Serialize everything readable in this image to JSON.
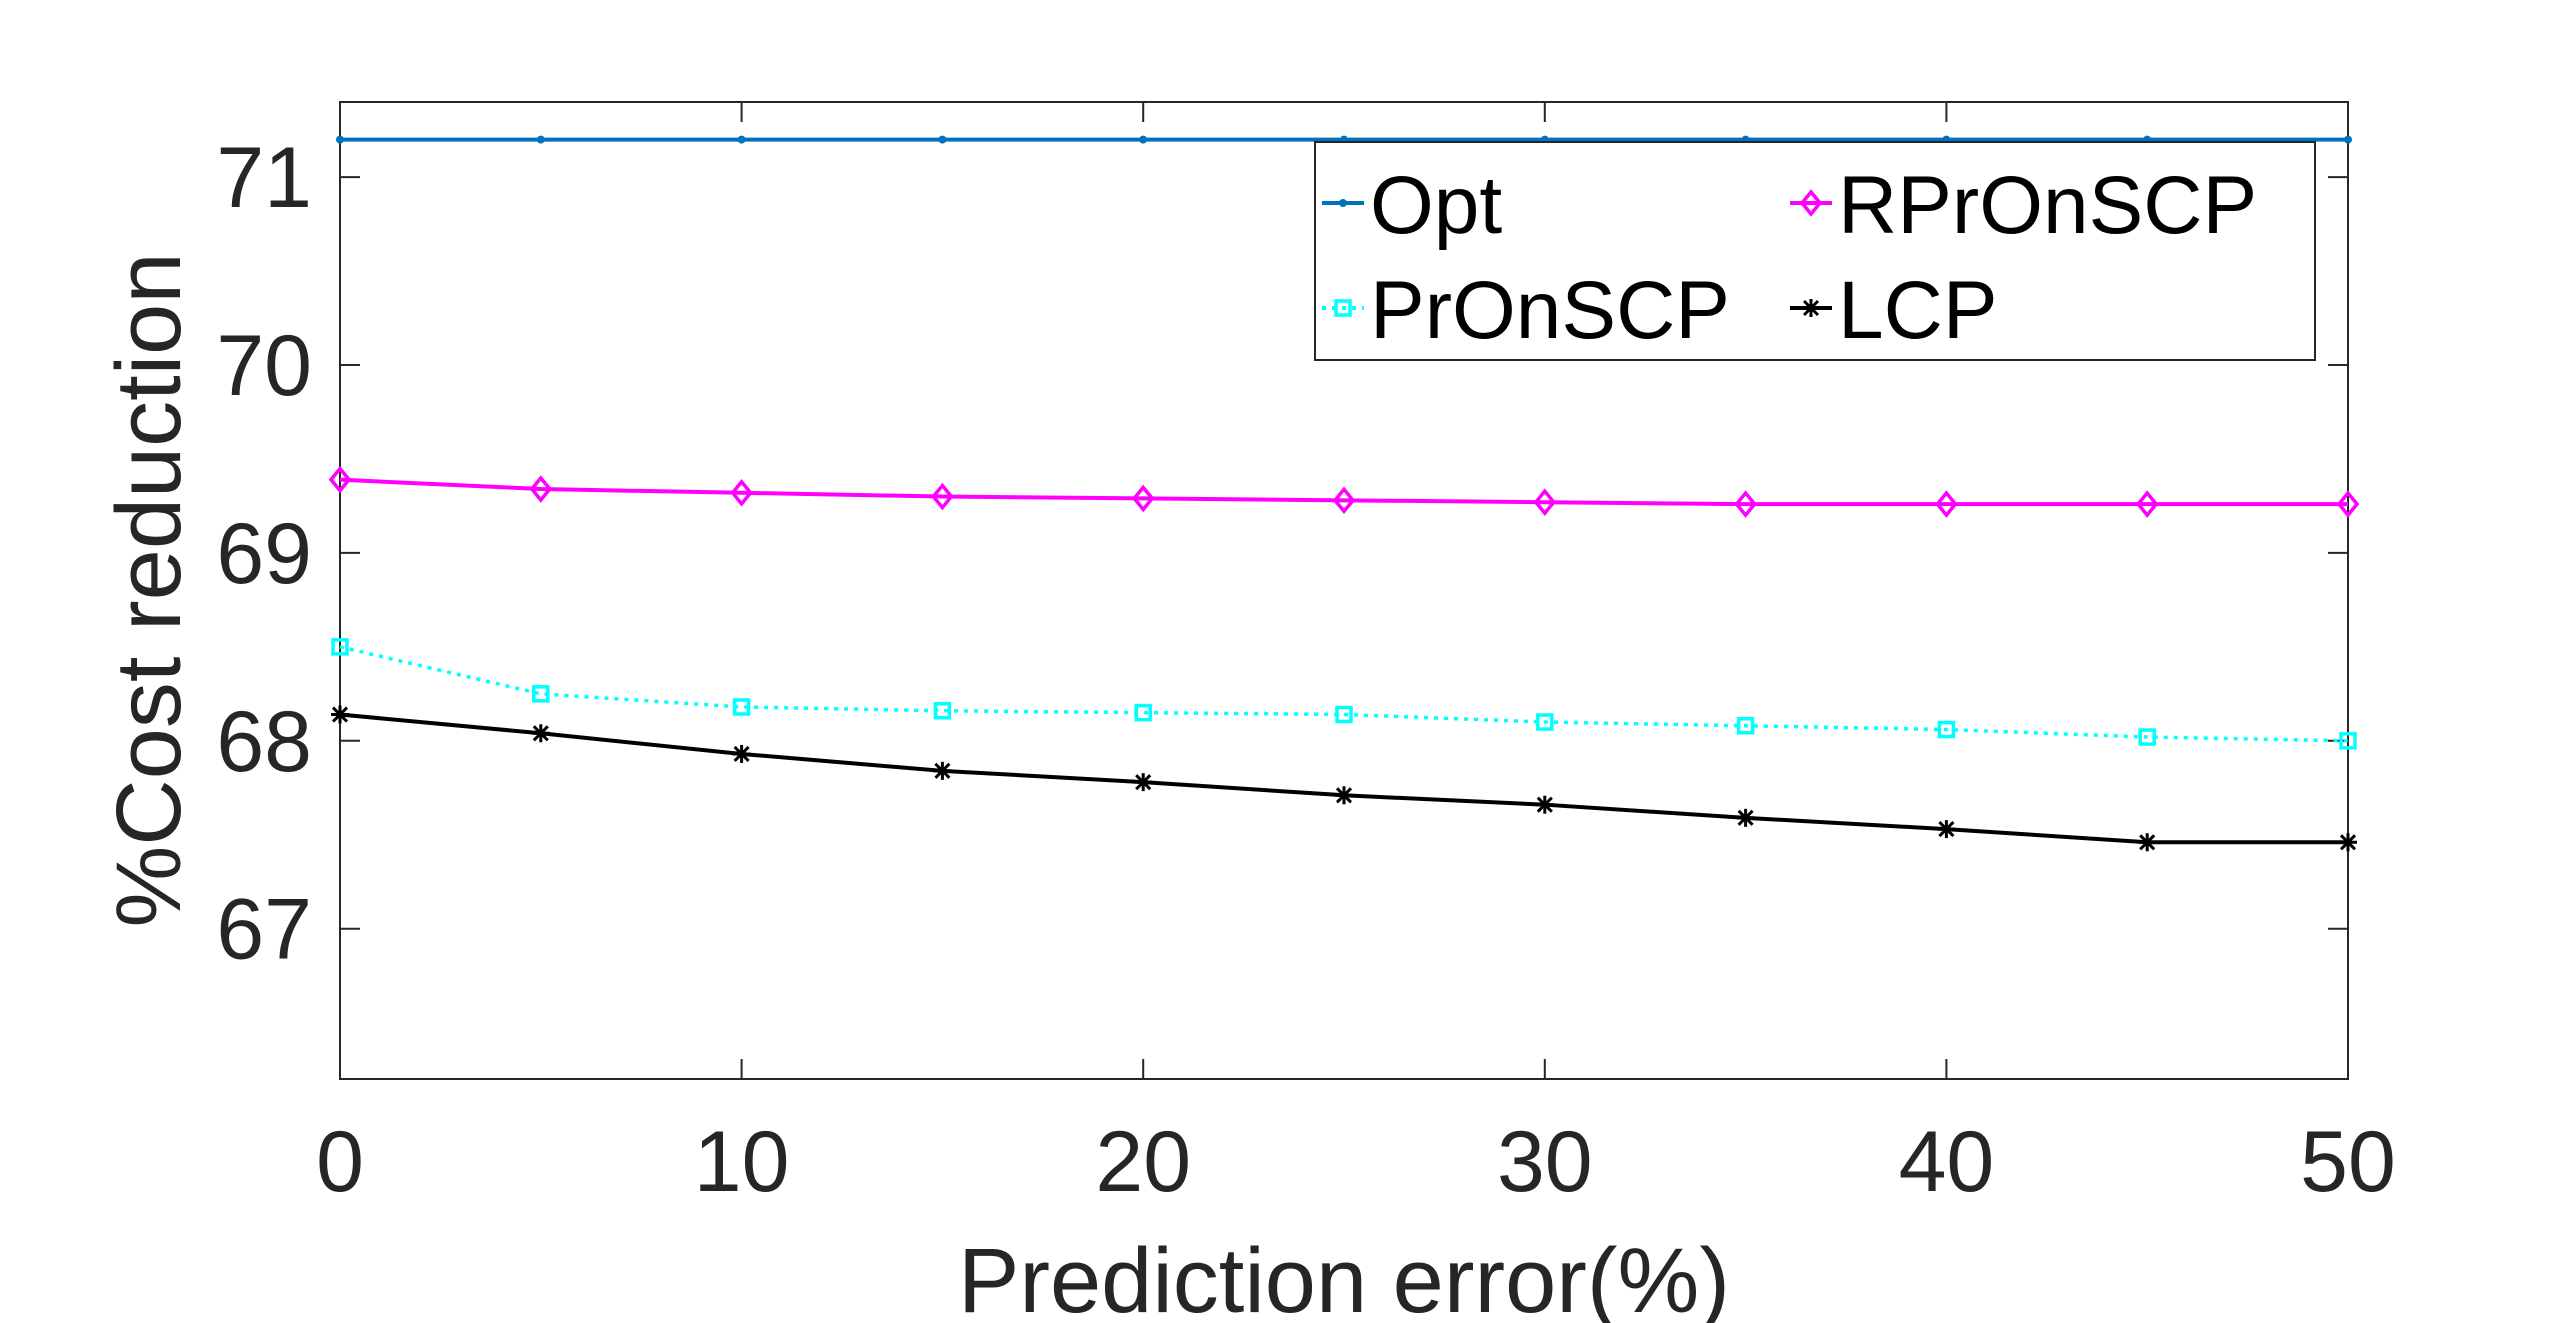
{
  "chart_data": {
    "type": "line",
    "title": "",
    "xlabel": "Prediction error(%)",
    "ylabel": "%Cost reduction",
    "xlim": [
      0,
      50
    ],
    "ylim": [
      66.2,
      71.4
    ],
    "xticks": [
      "0",
      "10",
      "20",
      "30",
      "40",
      "50"
    ],
    "yticks": [
      "67",
      "68",
      "69",
      "70",
      "71"
    ],
    "grid": false,
    "legend_position": "top-right",
    "x": [
      0,
      5,
      10,
      15,
      20,
      25,
      30,
      35,
      40,
      45,
      50
    ],
    "series": [
      {
        "name": "Opt",
        "color": "#0072BD",
        "marker": "dot",
        "line": "solid",
        "values": [
          71.2,
          71.2,
          71.2,
          71.2,
          71.2,
          71.2,
          71.2,
          71.2,
          71.2,
          71.2,
          71.2
        ]
      },
      {
        "name": "RPrOnSCP",
        "color": "#FF00FF",
        "marker": "diamond",
        "line": "solid",
        "values": [
          69.39,
          69.34,
          69.32,
          69.3,
          69.29,
          69.28,
          69.27,
          69.26,
          69.26,
          69.26,
          69.26
        ]
      },
      {
        "name": "PrOnSCP",
        "color": "#00FFFF",
        "marker": "square",
        "line": "dotted",
        "values": [
          68.5,
          68.25,
          68.18,
          68.16,
          68.15,
          68.14,
          68.1,
          68.08,
          68.06,
          68.02,
          68.0
        ]
      },
      {
        "name": "LCP",
        "color": "#000000",
        "marker": "star",
        "line": "solid",
        "values": [
          68.14,
          68.04,
          67.93,
          67.84,
          67.78,
          67.71,
          67.66,
          67.59,
          67.53,
          67.46,
          67.46
        ]
      }
    ]
  }
}
